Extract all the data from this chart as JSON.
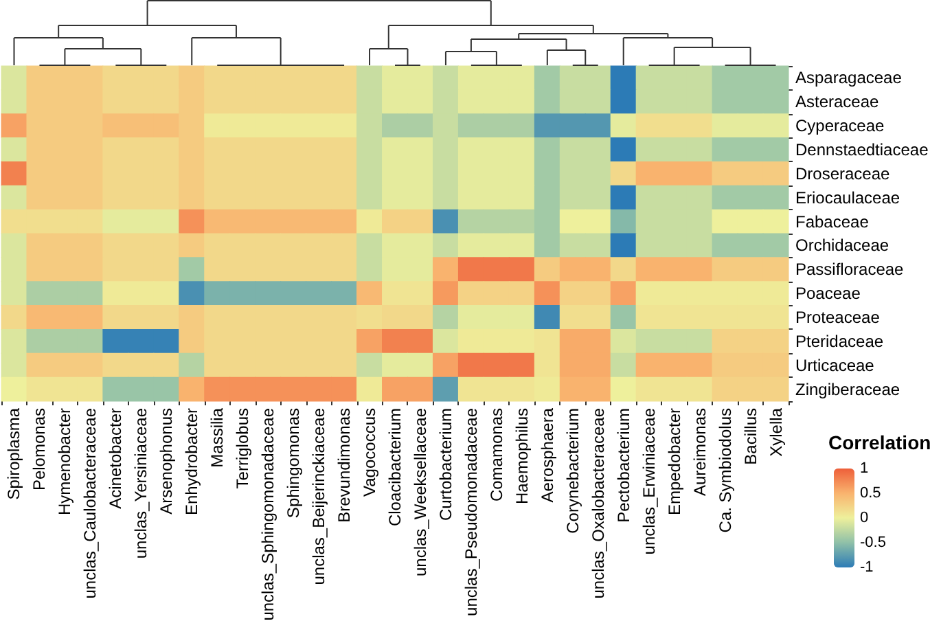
{
  "chart_data": {
    "type": "heatmap",
    "categories": [
      "Spiroplasma",
      "Pelomonas",
      "Hymenobacter",
      "unclas_Caulobacteraceae",
      "Acinetobacter",
      "unclas_Yersiniaceae",
      "Arsenophonus",
      "Enhydrobacter",
      "Massilia",
      "Terriglobus",
      "unclas_Sphingomonadaceae",
      "Sphingomonas",
      "unclas_Beijerinckiaceae",
      "Brevundimonas",
      "Vagococcus",
      "Cloacibacterium",
      "unclas_Weeksellaceae",
      "Curtobacterium",
      "unclas_Pseudomonadaceae",
      "Comamonas",
      "Haemophilus",
      "Aerosphaera",
      "Corynebacterium",
      "unclas_Oxalobacteraceae",
      "Pectobacterium",
      "unclas_Erwiniaceae",
      "Empedobacter",
      "Aureimonas",
      "Ca. Symbiodolus",
      "Bacillus",
      "Xylella"
    ],
    "y_categories": [
      "Asparagaceae",
      "Asteraceae",
      "Cyperaceae",
      "Dennstaedtiaceae",
      "Droseraceae",
      "Eriocaulaceae",
      "Fabaceae",
      "Orchidaceae",
      "Passifloraceae",
      "Poaceae",
      "Proteaceae",
      "Pteridaceae",
      "Urticaceae",
      "Zingiberaceae"
    ],
    "cells": [
      [
        -0.1,
        0.3,
        0.3,
        0.3,
        0.2,
        0.2,
        0.2,
        0.3,
        0.2,
        0.2,
        0.2,
        0.2,
        0.2,
        0.2,
        -0.2,
        -0.05,
        -0.05,
        -0.2,
        -0.05,
        -0.05,
        -0.05,
        -0.4,
        -0.2,
        -0.2,
        -1,
        -0.2,
        -0.2,
        -0.2,
        -0.4,
        -0.4,
        -0.4
      ],
      [
        -0.1,
        0.3,
        0.3,
        0.3,
        0.2,
        0.2,
        0.2,
        0.3,
        0.2,
        0.2,
        0.2,
        0.2,
        0.2,
        0.2,
        -0.2,
        -0.05,
        -0.05,
        -0.2,
        -0.05,
        -0.05,
        -0.05,
        -0.4,
        -0.2,
        -0.2,
        -1,
        -0.2,
        -0.2,
        -0.2,
        -0.4,
        -0.4,
        -0.4
      ],
      [
        0.6,
        0.3,
        0.3,
        0.3,
        0.4,
        0.4,
        0.4,
        0.3,
        0.05,
        0.05,
        0.05,
        0.05,
        0.05,
        0.05,
        -0.2,
        -0.35,
        -0.35,
        -0.2,
        -0.35,
        -0.35,
        -0.35,
        -0.8,
        -0.8,
        -0.8,
        -0.05,
        0.15,
        0.15,
        0.15,
        -0.05,
        -0.05,
        -0.05
      ],
      [
        -0.1,
        0.3,
        0.3,
        0.3,
        0.2,
        0.2,
        0.2,
        0.3,
        0.2,
        0.2,
        0.2,
        0.2,
        0.2,
        0.2,
        -0.2,
        -0.05,
        -0.05,
        -0.2,
        -0.05,
        -0.05,
        -0.05,
        -0.4,
        -0.2,
        -0.2,
        -1,
        -0.2,
        -0.2,
        -0.2,
        -0.4,
        -0.4,
        -0.4
      ],
      [
        0.8,
        0.3,
        0.3,
        0.3,
        0.2,
        0.2,
        0.2,
        0.3,
        0.2,
        0.2,
        0.2,
        0.2,
        0.2,
        0.2,
        -0.2,
        -0.05,
        -0.05,
        -0.2,
        -0.05,
        -0.05,
        -0.05,
        -0.4,
        -0.2,
        -0.2,
        0.2,
        0.5,
        0.5,
        0.5,
        0.3,
        0.3,
        0.3
      ],
      [
        -0.1,
        0.3,
        0.3,
        0.3,
        0.2,
        0.2,
        0.2,
        0.3,
        0.2,
        0.2,
        0.2,
        0.2,
        0.2,
        0.2,
        -0.2,
        -0.05,
        -0.05,
        -0.2,
        -0.05,
        -0.05,
        -0.05,
        -0.4,
        -0.2,
        -0.2,
        -1,
        -0.2,
        -0.2,
        -0.2,
        -0.4,
        -0.4,
        -0.4
      ],
      [
        0.15,
        0.15,
        0.15,
        0.15,
        -0.05,
        -0.05,
        -0.05,
        0.7,
        0.45,
        0.45,
        0.45,
        0.45,
        0.45,
        0.45,
        0.05,
        0.25,
        0.25,
        -0.85,
        -0.3,
        -0.3,
        -0.3,
        -0.4,
        0,
        0,
        -0.55,
        -0.2,
        -0.2,
        -0.2,
        0,
        0,
        0
      ],
      [
        -0.1,
        0.3,
        0.3,
        0.3,
        0.2,
        0.2,
        0.2,
        0.3,
        0.2,
        0.2,
        0.2,
        0.2,
        0.2,
        0.2,
        -0.2,
        -0.05,
        -0.05,
        -0.2,
        -0.05,
        -0.05,
        -0.05,
        -0.4,
        -0.2,
        -0.2,
        -1,
        -0.2,
        -0.2,
        -0.2,
        -0.4,
        -0.4,
        -0.4
      ],
      [
        -0.1,
        0.3,
        0.3,
        0.3,
        0.2,
        0.2,
        0.2,
        -0.4,
        0.2,
        0.2,
        0.2,
        0.2,
        0.2,
        0.2,
        -0.2,
        -0.05,
        -0.05,
        0.5,
        0.85,
        0.85,
        0.85,
        0.3,
        0.5,
        0.5,
        0.2,
        0.5,
        0.5,
        0.5,
        0.3,
        0.3,
        0.3
      ],
      [
        -0.1,
        -0.35,
        -0.35,
        -0.35,
        0.05,
        0.05,
        0.05,
        -0.85,
        -0.6,
        -0.6,
        -0.6,
        -0.6,
        -0.6,
        -0.6,
        0.45,
        0.1,
        0.1,
        0.65,
        0.25,
        0.25,
        0.25,
        0.7,
        0.25,
        0.25,
        0.6,
        0.05,
        0.05,
        0.05,
        0.05,
        0.05,
        0.05
      ],
      [
        0.2,
        0.45,
        0.45,
        0.45,
        0.2,
        0.2,
        0.2,
        0.3,
        0.2,
        0.2,
        0.2,
        0.2,
        0.2,
        0.2,
        0.15,
        0.2,
        0.2,
        -0.3,
        -0.05,
        -0.05,
        -0.05,
        -0.9,
        0.15,
        0.15,
        -0.45,
        0.1,
        0.1,
        0.1,
        0.1,
        0.1,
        0.1
      ],
      [
        -0.1,
        -0.35,
        -0.35,
        -0.35,
        -0.95,
        -0.95,
        -0.95,
        0.3,
        0.2,
        0.2,
        0.2,
        0.2,
        0.2,
        0.2,
        0.6,
        0.8,
        0.8,
        -0.1,
        0.05,
        0.05,
        0.05,
        0.1,
        0.55,
        0.55,
        -0.1,
        -0.2,
        -0.2,
        -0.2,
        0.25,
        0.25,
        0.25
      ],
      [
        -0.1,
        0.3,
        0.3,
        0.3,
        0.2,
        0.2,
        0.2,
        -0.3,
        0.2,
        0.2,
        0.2,
        0.2,
        0.2,
        0.2,
        -0.2,
        -0.05,
        -0.05,
        0.6,
        0.85,
        0.85,
        0.85,
        0.1,
        0.55,
        0.55,
        -0.2,
        0.5,
        0.5,
        0.5,
        0.3,
        0.3,
        0.3
      ],
      [
        0,
        0.1,
        0.1,
        0.1,
        -0.45,
        -0.45,
        -0.45,
        0.5,
        0.7,
        0.7,
        0.7,
        0.7,
        0.7,
        0.7,
        0.05,
        0.6,
        0.6,
        -0.75,
        0.1,
        0.1,
        0.1,
        0.05,
        0.5,
        0.5,
        0,
        0.1,
        0.1,
        0.1,
        0.25,
        0.25,
        0.25
      ]
    ],
    "clabel": "Correlation",
    "clim": [
      -1,
      1
    ],
    "cticks": [
      -1,
      -0.5,
      0,
      0.5,
      1
    ]
  }
}
